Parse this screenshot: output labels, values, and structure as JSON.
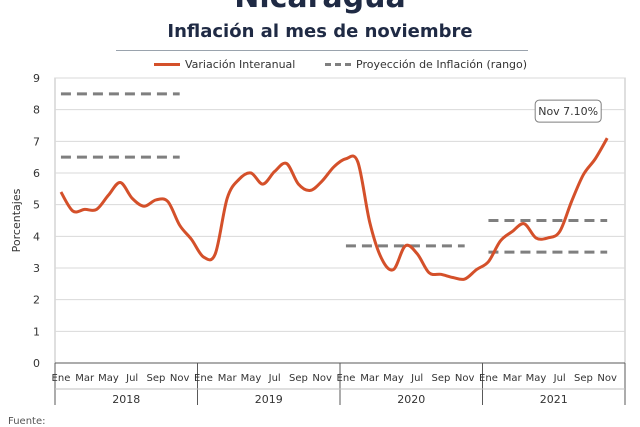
{
  "header": {
    "country": "Nicaragua",
    "subtitle": "Inflación al mes de noviembre"
  },
  "footnote": "Fuente:",
  "colors": {
    "series_line": "#d4502a",
    "projection_dash": "#7f7f7f",
    "grid": "#d9d9d9",
    "axis": "#595959"
  },
  "chart_data": {
    "type": "line",
    "title": "Inflación al mes de noviembre",
    "ylabel": "Porcentajes",
    "ylim": [
      0,
      9
    ],
    "yticks": [
      "0",
      "1",
      "2",
      "3",
      "4",
      "5",
      "6",
      "7",
      "8",
      "9"
    ],
    "grid": true,
    "legend_position": "top-center",
    "month_ticks": [
      "Ene",
      "Mar",
      "May",
      "Jul",
      "Sep",
      "Nov"
    ],
    "years": [
      "2018",
      "2019",
      "2020",
      "2021"
    ],
    "series": [
      {
        "name": "Variación Interanual",
        "style": "solid",
        "x": [
          "2018-01",
          "2018-02",
          "2018-03",
          "2018-04",
          "2018-05",
          "2018-06",
          "2018-07",
          "2018-08",
          "2018-09",
          "2018-10",
          "2018-11",
          "2018-12",
          "2019-01",
          "2019-02",
          "2019-03",
          "2019-04",
          "2019-05",
          "2019-06",
          "2019-07",
          "2019-08",
          "2019-09",
          "2019-10",
          "2019-11",
          "2019-12",
          "2020-01",
          "2020-02",
          "2020-03",
          "2020-04",
          "2020-05",
          "2020-06",
          "2020-07",
          "2020-08",
          "2020-09",
          "2020-10",
          "2020-11",
          "2020-12",
          "2021-01",
          "2021-02",
          "2021-03",
          "2021-04",
          "2021-05",
          "2021-06",
          "2021-07",
          "2021-08",
          "2021-09",
          "2021-10",
          "2021-11"
        ],
        "values": [
          5.4,
          4.8,
          4.85,
          4.85,
          5.3,
          5.7,
          5.2,
          4.95,
          5.15,
          5.1,
          4.35,
          3.9,
          3.35,
          3.45,
          5.2,
          5.8,
          6.0,
          5.65,
          6.05,
          6.3,
          5.65,
          5.45,
          5.75,
          6.2,
          6.45,
          6.35,
          4.45,
          3.3,
          2.95,
          3.7,
          3.45,
          2.85,
          2.8,
          2.7,
          2.65,
          2.95,
          3.2,
          3.85,
          4.15,
          4.4,
          3.95,
          3.95,
          4.15,
          5.1,
          5.95,
          6.45,
          7.1
        ]
      },
      {
        "name": "Proyección de Inflación (rango)",
        "style": "dashed",
        "ranges": [
          {
            "from": "2018-01",
            "to": "2018-11",
            "low": 6.5,
            "high": 8.5
          },
          {
            "from": "2020-01",
            "to": "2020-11",
            "low": 3.7,
            "high": 3.7
          },
          {
            "from": "2021-01",
            "to": "2021-11",
            "low": 3.5,
            "high": 4.5
          }
        ]
      }
    ],
    "annotations": [
      {
        "text": "Nov 7.10%",
        "x": "2021-11",
        "y": 7.1
      }
    ]
  }
}
